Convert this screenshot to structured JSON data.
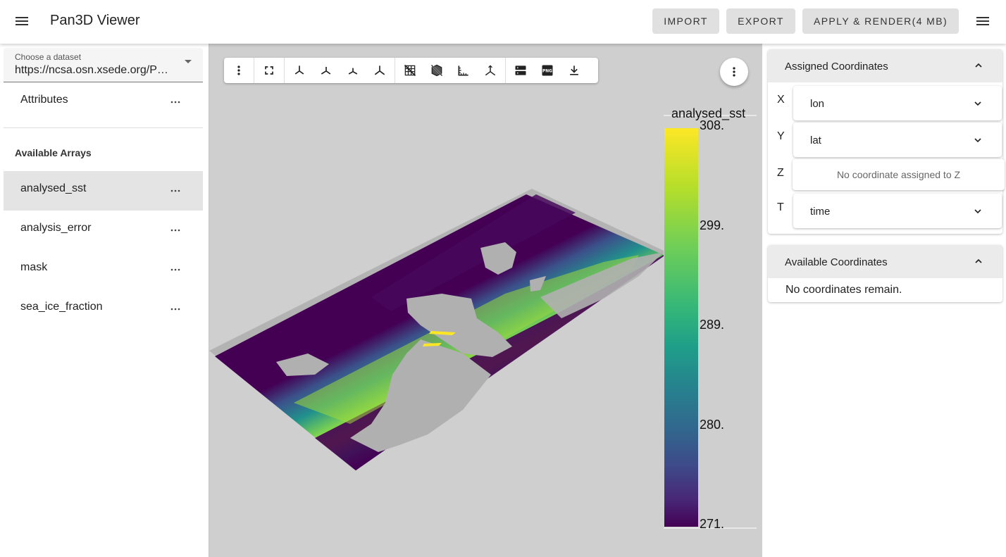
{
  "appbar": {
    "title": "Pan3D Viewer",
    "import_label": "Import",
    "export_label": "Export",
    "apply_label": "Apply & Render(4 MB)"
  },
  "sidebar": {
    "dataset_label": "Choose a dataset",
    "dataset_value": "https://ncsa.osn.xsede.org/Pangeo/pangeo-forge/mursst",
    "attributes_label": "Attributes",
    "arrays_header": "Available Arrays",
    "arrays": [
      {
        "label": "analysed_sst",
        "selected": true
      },
      {
        "label": "analysis_error",
        "selected": false
      },
      {
        "label": "mask",
        "selected": false
      },
      {
        "label": "sea_ice_fraction",
        "selected": false
      }
    ]
  },
  "viewer": {
    "colorbar_title": "analysed_sst",
    "colorbar_ticks": [
      "308.",
      "299.",
      "289.",
      "280.",
      "271."
    ],
    "colormap": [
      "#fde725",
      "#b5de2b",
      "#6ece58",
      "#35b779",
      "#1f9e89",
      "#26828e",
      "#31688e",
      "#3e4989",
      "#482878",
      "#440154"
    ],
    "land_color": "#b0b0b0",
    "toolbar_icons": [
      "more-vertical-icon",
      "fullscreen-icon",
      "view-x-icon",
      "view-y-icon",
      "view-z-icon",
      "view-reset-axis-icon",
      "grid-icon",
      "cube-outline-icon",
      "ruler-icon",
      "axes-icon",
      "server-icon",
      "png-icon",
      "download-icon"
    ]
  },
  "coords": {
    "assigned_title": "Assigned Coordinates",
    "axes": [
      {
        "axis": "X",
        "value": "lon"
      },
      {
        "axis": "Y",
        "value": "lat"
      },
      {
        "axis": "Z",
        "value": "No coordinate assigned to Z"
      },
      {
        "axis": "T",
        "value": "time"
      }
    ],
    "available_title": "Available Coordinates",
    "available_empty": "No coordinates remain."
  }
}
